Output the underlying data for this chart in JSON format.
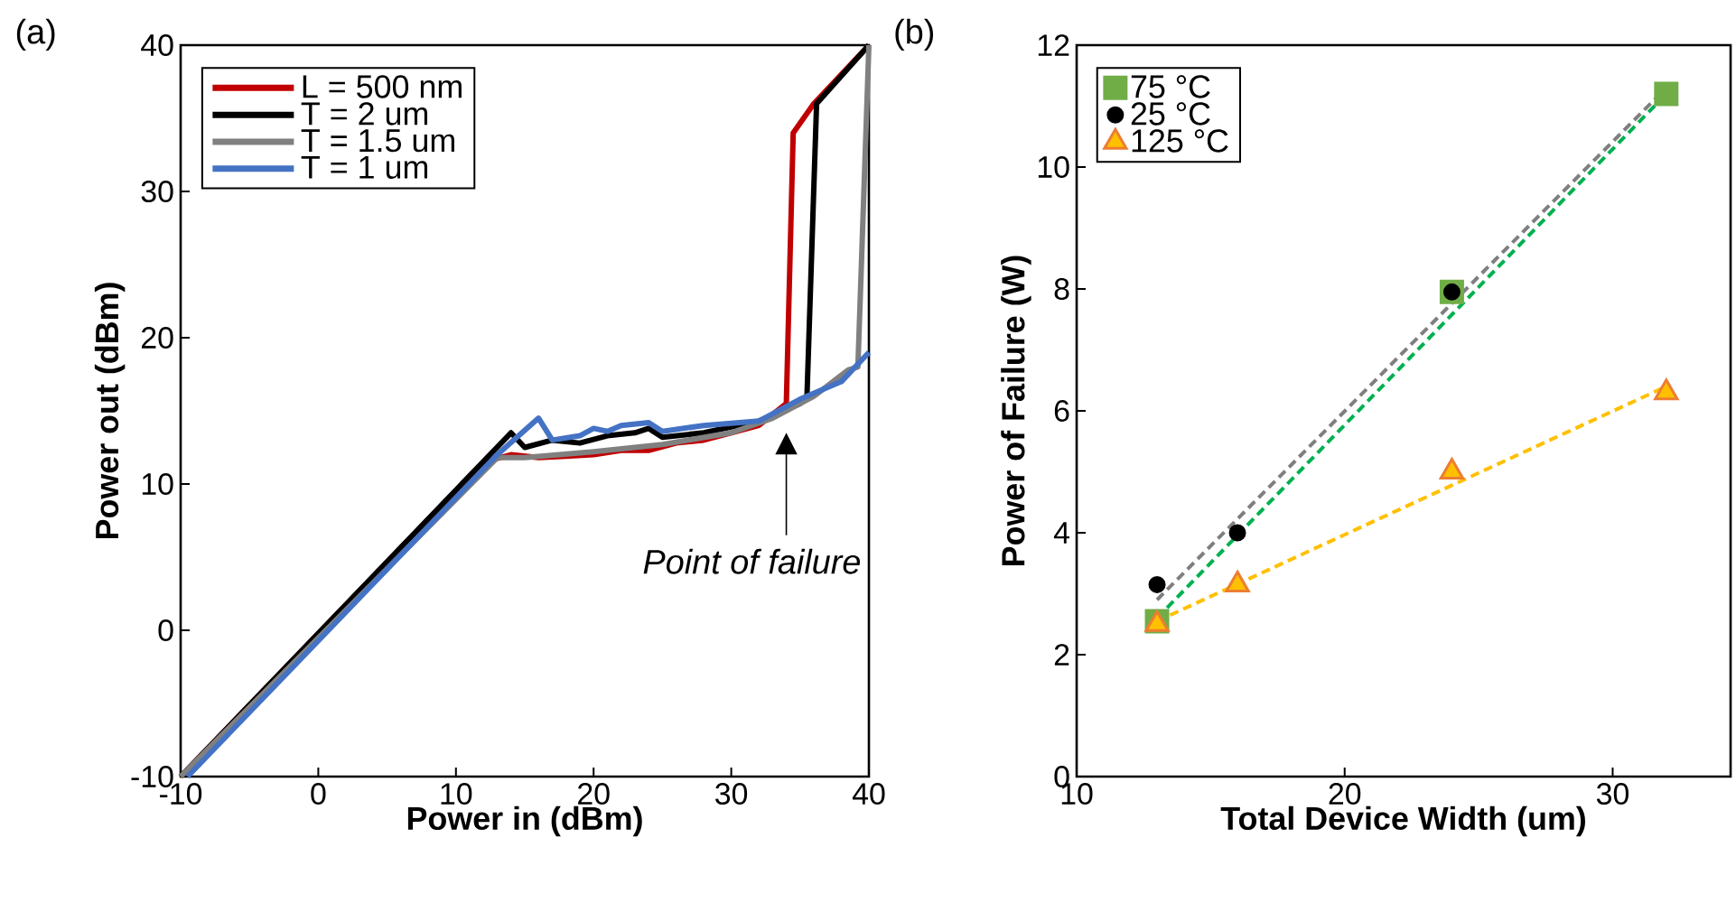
{
  "chart_data": [
    {
      "type": "line",
      "title": "(a)",
      "xlabel": "Power in (dBm)",
      "ylabel": "Power out (dBm)",
      "xlim": [
        -10,
        40
      ],
      "ylim": [
        -10,
        40
      ],
      "xticks": [
        -10,
        0,
        10,
        20,
        30,
        40
      ],
      "yticks": [
        -10,
        0,
        10,
        20,
        30,
        40
      ],
      "legend": "top left",
      "series": [
        {
          "name": "L = 500 nm",
          "color": "#c00000",
          "x": [
            -10,
            12,
            14,
            16,
            18,
            20,
            22,
            24,
            26,
            28,
            30,
            32,
            34,
            34.5,
            36,
            40
          ],
          "values": [
            -10,
            11.5,
            12,
            11.8,
            11.9,
            12,
            12.3,
            12.3,
            12.8,
            13,
            13.5,
            14,
            15.5,
            34,
            36,
            40
          ]
        },
        {
          "name": "T = 2 um",
          "color": "#000000",
          "x": [
            -10,
            14,
            15,
            17,
            19,
            21,
            23,
            24,
            25,
            28,
            32,
            35,
            35.5,
            36.2,
            40
          ],
          "values": [
            -10,
            13.5,
            12.5,
            13,
            12.8,
            13.3,
            13.5,
            13.8,
            13.2,
            13.5,
            14.3,
            15.5,
            16,
            36,
            40
          ]
        },
        {
          "name": "T = 1.5 um",
          "color": "#808080",
          "x": [
            -10,
            13,
            15,
            20,
            25,
            30,
            33,
            36,
            38.5,
            39.2,
            40
          ],
          "values": [
            -10,
            11.8,
            11.8,
            12.2,
            12.7,
            13.5,
            14.5,
            16,
            17.8,
            18,
            40
          ]
        },
        {
          "name": "T = 1 um",
          "color": "#4472c4",
          "x": [
            -9.5,
            13,
            16,
            17,
            19,
            20,
            21,
            22,
            24,
            25,
            28,
            32,
            35,
            38,
            40
          ],
          "values": [
            -10,
            12,
            14.5,
            13,
            13.3,
            13.8,
            13.6,
            14,
            14.2,
            13.6,
            14,
            14.3,
            15.8,
            17,
            19
          ]
        }
      ],
      "annotations": [
        "Point of failure"
      ]
    },
    {
      "type": "scatter",
      "title": "(b)",
      "xlabel": "Total Device Width (um)",
      "ylabel": "Power of Failure (W)",
      "xlim": [
        10,
        34.4
      ],
      "ylim": [
        0,
        12
      ],
      "xticks": [
        10,
        20,
        30
      ],
      "yticks": [
        0,
        2,
        4,
        6,
        8,
        10,
        12
      ],
      "legend": "top left",
      "series": [
        {
          "type": "line",
          "line_style": "dashed",
          "marker": "none",
          "color": "#7f7f7f",
          "x": [
            13,
            32
          ],
          "values": [
            2.9,
            11.3
          ]
        },
        {
          "type": "line",
          "line_style": "dashed",
          "marker": "none",
          "color": "#00b050",
          "x": [
            13,
            32
          ],
          "values": [
            2.6,
            11.2
          ]
        },
        {
          "type": "line",
          "line_style": "dashed",
          "marker": "none",
          "color": "#ffc000",
          "x": [
            13,
            32
          ],
          "values": [
            2.55,
            6.4
          ]
        },
        {
          "name": "75 °C",
          "type": "scatter",
          "marker": "square",
          "color": "#70ad47",
          "x": [
            13,
            24,
            32
          ],
          "values": [
            2.55,
            7.95,
            11.2
          ]
        },
        {
          "name": "25 °C",
          "type": "scatter",
          "marker": "circle",
          "color": "#000000",
          "x": [
            13,
            16,
            24
          ],
          "values": [
            3.15,
            4,
            7.95
          ]
        },
        {
          "name": "125 °C",
          "type": "scatter",
          "marker": "triangle",
          "color": "#ffc000",
          "x": [
            13,
            16,
            24,
            32
          ],
          "values": [
            2.5,
            3.15,
            5,
            6.3
          ]
        }
      ]
    }
  ]
}
